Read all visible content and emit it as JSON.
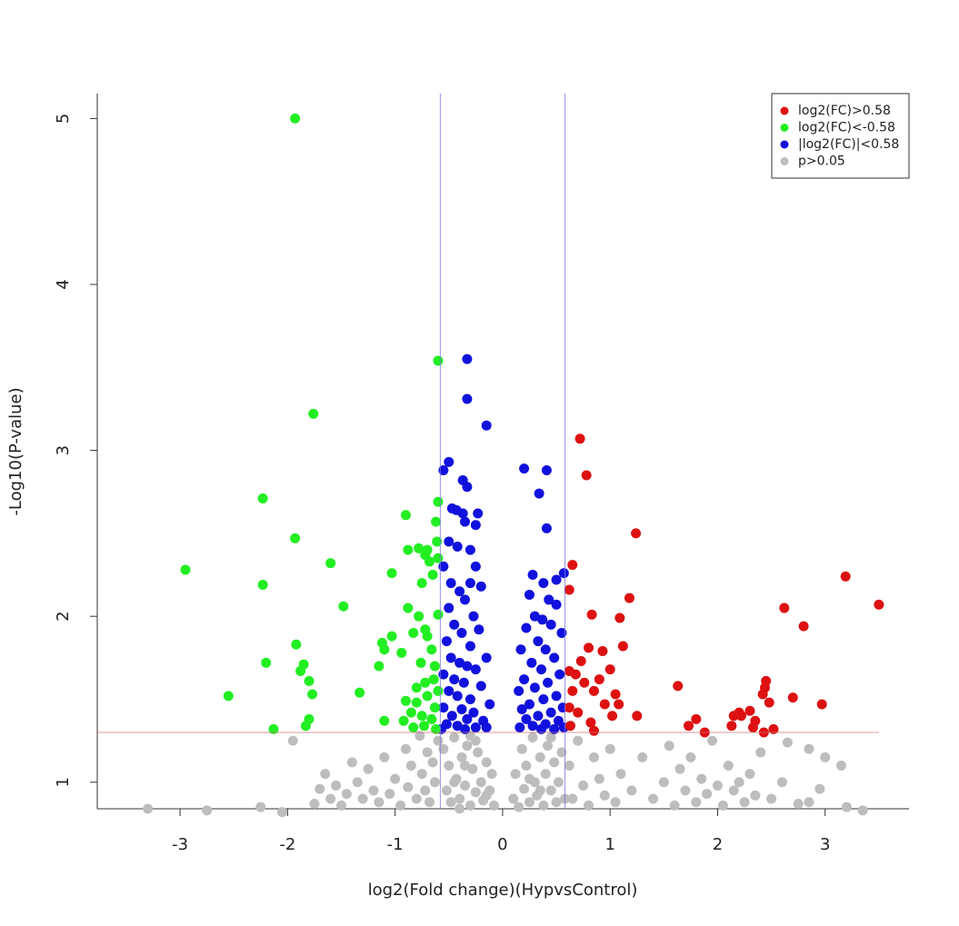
{
  "chart_data": {
    "type": "scatter",
    "x_label": "log2(Fold change)(HypvsControl)",
    "y_label": "-Log10(P-value)",
    "xlim": [
      -3.77,
      3.78
    ],
    "ylim": [
      0.84,
      5.15
    ],
    "xticks": [
      -3,
      -2,
      -1,
      0,
      1,
      2,
      3
    ],
    "yticks": [
      1,
      2,
      3,
      4,
      5
    ],
    "vlines": [
      -0.58,
      0.58
    ],
    "vline_color": "#7a7ae0",
    "hline": 1.3,
    "hline_color": "#d07070",
    "legend": "top-right",
    "series": [
      {
        "name": "log2(FC)>0.58",
        "color": "#dd1111",
        "x": [
          0.72,
          0.78,
          1.24,
          0.65,
          3.19,
          0.62,
          1.18,
          2.62,
          3.5,
          0.83,
          1.09,
          2.8,
          1.12,
          0.8,
          0.93,
          0.73,
          0.68,
          0.62,
          0.76,
          1.0,
          0.9,
          1.63,
          0.65,
          0.85,
          1.05,
          2.45,
          2.44,
          2.42,
          2.7,
          2.48,
          2.97,
          0.95,
          1.08,
          0.62,
          0.7,
          2.3,
          2.2,
          2.22,
          2.15,
          1.25,
          0.82,
          2.35,
          2.33,
          1.8,
          1.73,
          2.13,
          1.88,
          2.52,
          2.43,
          0.85,
          0.63,
          1.02
        ],
        "values": [
          3.07,
          2.85,
          2.5,
          2.31,
          2.24,
          2.16,
          2.11,
          2.05,
          2.07,
          2.01,
          1.99,
          1.94,
          1.82,
          1.81,
          1.79,
          1.73,
          1.65,
          1.67,
          1.6,
          1.68,
          1.62,
          1.58,
          1.55,
          1.55,
          1.53,
          1.61,
          1.57,
          1.53,
          1.51,
          1.48,
          1.47,
          1.47,
          1.47,
          1.45,
          1.42,
          1.43,
          1.42,
          1.4,
          1.4,
          1.4,
          1.36,
          1.37,
          1.33,
          1.38,
          1.34,
          1.34,
          1.3,
          1.32,
          1.3,
          1.31,
          1.34,
          1.4
        ]
      },
      {
        "name": "log2(FC)<-0.58",
        "color": "#22ee22",
        "x": [
          -1.93,
          -0.6,
          -1.76,
          -2.23,
          -1.93,
          -2.95,
          -2.23,
          -1.6,
          -1.48,
          -1.92,
          -2.2,
          -1.85,
          -1.88,
          -1.8,
          -1.77,
          -2.55,
          -1.8,
          -1.83,
          -2.13,
          -1.33,
          -1.15,
          -1.12,
          -1.1,
          -1.03,
          -1.1,
          -1.03,
          -0.9,
          -0.88,
          -0.78,
          -0.72,
          -0.7,
          -0.68,
          -0.62,
          -0.6,
          -0.61,
          -0.65,
          -0.75,
          -0.88,
          -0.78,
          -0.72,
          -0.83,
          -0.7,
          -0.94,
          -0.66,
          -0.76,
          -0.72,
          -0.8,
          -0.64,
          -0.9,
          -0.8,
          -0.7,
          -0.63,
          -0.85,
          -0.75,
          -0.66,
          -0.83,
          -0.73,
          -0.62,
          -0.92,
          -0.6,
          -0.63,
          -0.6,
          -0.6
        ],
        "values": [
          5.0,
          3.54,
          3.22,
          2.71,
          2.47,
          2.28,
          2.19,
          2.32,
          2.06,
          1.83,
          1.72,
          1.71,
          1.67,
          1.61,
          1.53,
          1.52,
          1.38,
          1.34,
          1.32,
          1.54,
          1.7,
          1.84,
          1.8,
          1.88,
          1.37,
          2.26,
          2.61,
          2.4,
          2.41,
          2.37,
          2.4,
          2.33,
          2.57,
          2.69,
          2.45,
          2.25,
          2.2,
          2.05,
          2.0,
          1.92,
          1.9,
          1.88,
          1.78,
          1.8,
          1.72,
          1.6,
          1.57,
          1.62,
          1.49,
          1.48,
          1.52,
          1.45,
          1.42,
          1.4,
          1.38,
          1.33,
          1.34,
          1.32,
          1.37,
          1.55,
          1.7,
          2.01,
          2.35
        ]
      },
      {
        "name": "|log2(FC)|<0.58",
        "color": "#1111dd",
        "x": [
          -0.33,
          -0.33,
          -0.15,
          -0.5,
          -0.55,
          -0.37,
          -0.33,
          -0.47,
          -0.43,
          -0.37,
          -0.23,
          -0.35,
          -0.25,
          -0.5,
          -0.42,
          -0.3,
          -0.25,
          -0.48,
          -0.3,
          -0.55,
          -0.4,
          -0.2,
          -0.5,
          -0.35,
          -0.27,
          -0.45,
          -0.38,
          -0.22,
          -0.52,
          -0.3,
          -0.15,
          -0.48,
          -0.4,
          -0.33,
          -0.25,
          -0.55,
          -0.45,
          -0.36,
          -0.2,
          -0.5,
          -0.42,
          -0.3,
          -0.12,
          -0.55,
          -0.38,
          -0.27,
          -0.47,
          -0.33,
          -0.18,
          -0.52,
          -0.42,
          -0.25,
          -0.35,
          -0.57,
          -0.15,
          0.2,
          0.41,
          0.34,
          0.41,
          0.5,
          0.57,
          0.28,
          0.38,
          0.25,
          0.43,
          0.5,
          0.3,
          0.37,
          0.45,
          0.22,
          0.55,
          0.33,
          0.4,
          0.17,
          0.48,
          0.27,
          0.36,
          0.53,
          0.2,
          0.42,
          0.3,
          0.15,
          0.5,
          0.38,
          0.25,
          0.56,
          0.18,
          0.45,
          0.33,
          0.22,
          0.52,
          0.4,
          0.28,
          0.16,
          0.48,
          0.36,
          0.57
        ],
        "values": [
          3.55,
          3.31,
          3.15,
          2.93,
          2.88,
          2.82,
          2.78,
          2.65,
          2.64,
          2.62,
          2.62,
          2.57,
          2.55,
          2.45,
          2.42,
          2.4,
          2.3,
          2.2,
          2.2,
          2.3,
          2.15,
          2.18,
          2.05,
          2.1,
          2.0,
          1.95,
          1.9,
          1.92,
          1.85,
          1.82,
          1.75,
          1.75,
          1.72,
          1.7,
          1.68,
          1.65,
          1.62,
          1.6,
          1.58,
          1.55,
          1.52,
          1.5,
          1.47,
          1.45,
          1.44,
          1.42,
          1.4,
          1.38,
          1.37,
          1.35,
          1.34,
          1.33,
          1.32,
          1.32,
          1.33,
          2.89,
          2.88,
          2.74,
          2.53,
          2.22,
          2.26,
          2.25,
          2.2,
          2.13,
          2.1,
          2.07,
          2.0,
          1.98,
          1.95,
          1.93,
          1.9,
          1.85,
          1.8,
          1.8,
          1.75,
          1.72,
          1.68,
          1.65,
          1.62,
          1.6,
          1.57,
          1.55,
          1.52,
          1.5,
          1.47,
          1.45,
          1.44,
          1.42,
          1.4,
          1.38,
          1.37,
          1.35,
          1.34,
          1.33,
          1.32,
          1.32,
          1.33
        ]
      },
      {
        "name": "p>0.05",
        "color": "#bdbdbd",
        "x": [
          -3.3,
          -2.75,
          -2.25,
          -2.05,
          -1.95,
          -1.75,
          -1.7,
          -1.65,
          -1.6,
          -1.55,
          -1.5,
          -1.45,
          -1.4,
          -1.35,
          -1.3,
          -1.25,
          -1.2,
          -1.15,
          -1.1,
          -1.05,
          -1.0,
          -0.95,
          -0.9,
          -0.88,
          -0.85,
          -0.8,
          -0.77,
          -0.75,
          -0.72,
          -0.7,
          -0.68,
          -0.65,
          -0.63,
          -0.6,
          -0.55,
          -0.52,
          -0.5,
          -0.48,
          -0.45,
          -0.43,
          -0.4,
          -0.38,
          -0.35,
          -0.33,
          -0.3,
          -0.28,
          -0.25,
          -0.23,
          -0.2,
          -0.18,
          -0.15,
          -0.12,
          -0.1,
          -0.08,
          -0.45,
          -0.35,
          -0.25,
          -0.15,
          -0.4,
          -0.3,
          0.1,
          0.12,
          0.15,
          0.18,
          0.2,
          0.22,
          0.25,
          0.28,
          0.3,
          0.32,
          0.35,
          0.38,
          0.4,
          0.42,
          0.45,
          0.48,
          0.5,
          0.52,
          0.55,
          0.58,
          0.25,
          0.35,
          0.45,
          0.62,
          0.65,
          0.7,
          0.75,
          0.8,
          0.85,
          0.9,
          0.95,
          1.0,
          1.05,
          1.1,
          1.2,
          1.3,
          1.4,
          1.5,
          1.55,
          1.6,
          1.65,
          1.7,
          1.75,
          1.8,
          1.85,
          1.9,
          1.95,
          2.0,
          2.05,
          2.1,
          2.15,
          2.2,
          2.25,
          2.3,
          2.35,
          2.4,
          2.5,
          2.6,
          2.65,
          2.75,
          2.85,
          2.95,
          3.0,
          3.15,
          3.2,
          3.35,
          2.85
        ],
        "values": [
          0.84,
          0.83,
          0.85,
          0.82,
          1.25,
          0.87,
          0.96,
          1.05,
          0.9,
          0.98,
          0.86,
          0.93,
          1.12,
          1.0,
          0.9,
          1.08,
          0.95,
          0.88,
          1.15,
          0.93,
          1.02,
          0.86,
          1.2,
          0.97,
          1.1,
          0.9,
          1.28,
          1.05,
          0.95,
          1.18,
          0.88,
          1.12,
          1.0,
          1.25,
          1.2,
          0.95,
          1.1,
          0.88,
          1.27,
          1.02,
          0.9,
          1.15,
          0.98,
          1.22,
          0.86,
          1.08,
          0.94,
          1.18,
          1.0,
          0.89,
          1.12,
          0.95,
          1.05,
          0.86,
          1.0,
          1.1,
          1.25,
          0.92,
          0.84,
          1.28,
          0.9,
          1.05,
          0.85,
          1.2,
          0.96,
          1.1,
          0.88,
          1.27,
          1.0,
          0.92,
          1.15,
          0.86,
          1.05,
          1.22,
          0.95,
          1.12,
          0.88,
          1.0,
          1.18,
          0.9,
          1.02,
          0.95,
          1.27,
          1.1,
          0.9,
          1.25,
          0.98,
          0.86,
          1.15,
          1.02,
          0.92,
          1.2,
          0.88,
          1.05,
          0.95,
          1.15,
          0.9,
          1.0,
          1.22,
          0.86,
          1.08,
          0.95,
          1.15,
          0.88,
          1.02,
          0.93,
          1.25,
          0.98,
          0.86,
          1.1,
          0.95,
          1.0,
          0.88,
          1.05,
          0.92,
          1.18,
          0.9,
          1.0,
          1.24,
          0.87,
          1.2,
          0.96,
          1.15,
          1.1,
          0.85,
          0.83,
          0.88
        ]
      }
    ]
  }
}
